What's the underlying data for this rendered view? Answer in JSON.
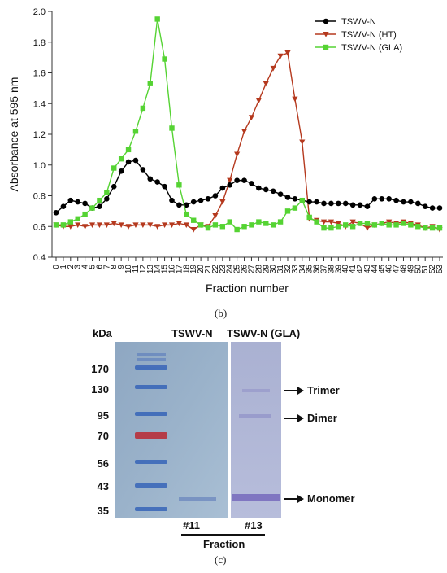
{
  "chart_data": {
    "type": "line",
    "xlabel": "Fraction number",
    "ylabel": "Absorbance at 595 nm",
    "xlim": [
      0,
      53
    ],
    "ylim": [
      0.4,
      2.0
    ],
    "yticks": [
      "0.4",
      "0.6",
      "0.8",
      "1.0",
      "1.2",
      "1.4",
      "1.6",
      "1.8",
      "2.0"
    ],
    "x": [
      0,
      1,
      2,
      3,
      4,
      5,
      6,
      7,
      8,
      9,
      10,
      11,
      12,
      13,
      14,
      15,
      16,
      17,
      18,
      19,
      20,
      21,
      22,
      23,
      24,
      25,
      26,
      27,
      28,
      29,
      30,
      31,
      32,
      33,
      34,
      35,
      36,
      37,
      38,
      39,
      40,
      41,
      42,
      43,
      44,
      45,
      46,
      47,
      48,
      49,
      50,
      51,
      52,
      53
    ],
    "legend_position": "top-right",
    "series": [
      {
        "name": "TSWV-N",
        "color": "#000000",
        "marker": "circle",
        "values": [
          0.69,
          0.73,
          0.77,
          0.76,
          0.75,
          0.72,
          0.73,
          0.78,
          0.86,
          0.96,
          1.02,
          1.03,
          0.97,
          0.91,
          0.89,
          0.86,
          0.77,
          0.74,
          0.74,
          0.76,
          0.77,
          0.78,
          0.8,
          0.85,
          0.87,
          0.9,
          0.9,
          0.88,
          0.85,
          0.84,
          0.83,
          0.81,
          0.79,
          0.78,
          0.77,
          0.76,
          0.76,
          0.75,
          0.75,
          0.75,
          0.75,
          0.74,
          0.74,
          0.73,
          0.78,
          0.78,
          0.78,
          0.77,
          0.76,
          0.76,
          0.75,
          0.73,
          0.72,
          0.72
        ]
      },
      {
        "name": "TSWV-N (HT)",
        "color": "#b5391e",
        "marker": "triangle-down",
        "values": [
          0.61,
          0.6,
          0.6,
          0.61,
          0.6,
          0.61,
          0.61,
          0.61,
          0.62,
          0.61,
          0.6,
          0.61,
          0.61,
          0.61,
          0.6,
          0.61,
          0.61,
          0.62,
          0.61,
          0.58,
          0.61,
          0.6,
          0.67,
          0.76,
          0.9,
          1.07,
          1.22,
          1.31,
          1.42,
          1.53,
          1.63,
          1.71,
          1.73,
          1.43,
          1.15,
          0.65,
          0.64,
          0.63,
          0.63,
          0.62,
          0.6,
          0.63,
          0.62,
          0.59,
          0.61,
          0.62,
          0.63,
          0.62,
          0.63,
          0.62,
          0.61,
          0.59,
          0.6,
          0.58
        ]
      },
      {
        "name": "TSWV-N (GLA)",
        "color": "#55d333",
        "marker": "square",
        "values": [
          0.61,
          0.61,
          0.63,
          0.65,
          0.68,
          0.72,
          0.77,
          0.82,
          0.98,
          1.04,
          1.1,
          1.22,
          1.37,
          1.53,
          1.95,
          1.69,
          1.24,
          0.87,
          0.68,
          0.64,
          0.61,
          0.59,
          0.61,
          0.6,
          0.63,
          0.58,
          0.6,
          0.61,
          0.63,
          0.62,
          0.61,
          0.63,
          0.7,
          0.72,
          0.77,
          0.66,
          0.63,
          0.59,
          0.59,
          0.6,
          0.61,
          0.6,
          0.62,
          0.62,
          0.61,
          0.62,
          0.61,
          0.61,
          0.62,
          0.61,
          0.6,
          0.59,
          0.59,
          0.59
        ]
      }
    ]
  },
  "labels": {
    "panel_b": "(b)",
    "panel_c": "(c)"
  },
  "gel": {
    "kda_label": "kDa",
    "lane1_title": "TSWV-N",
    "lane2_title": "TSWV-N (GLA)",
    "markers": [
      "170",
      "130",
      "95",
      "70",
      "56",
      "43",
      "35"
    ],
    "bands": [
      "Trimer",
      "Dimer",
      "Monomer"
    ],
    "fraction_labels": [
      "#11",
      "#13"
    ],
    "fraction_caption": "Fraction"
  }
}
